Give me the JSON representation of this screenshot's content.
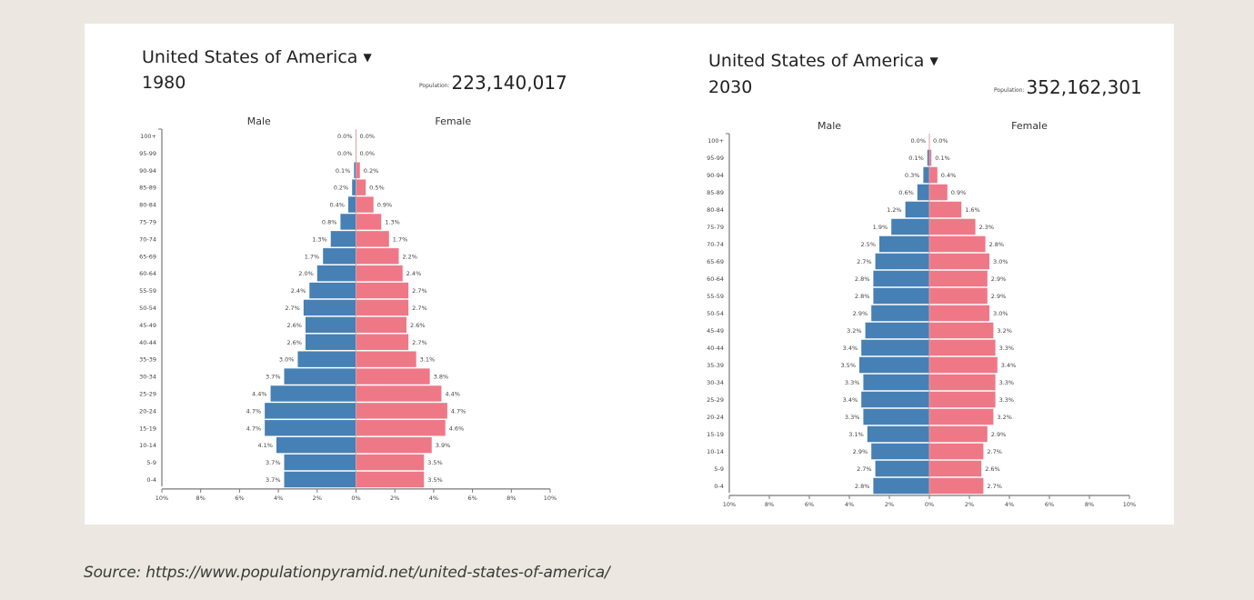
{
  "source_text": "Source: https://www.populationpyramid.net/united-states-of-america/",
  "colors": {
    "male": "#4680b5",
    "female": "#ef7887",
    "axis": "#777777",
    "background": "#ece7e1",
    "card": "#ffffff"
  },
  "pyramids": [
    {
      "country": "United States of America",
      "dropdown_icon": "caret-down-icon",
      "year": "1980",
      "population_label": "Population:",
      "population_value": "223,140,017"
    },
    {
      "country": "United States of America",
      "dropdown_icon": "caret-down-icon",
      "year": "2030",
      "population_label": "Population:",
      "population_value": "352,162,301"
    }
  ],
  "chart_data": [
    {
      "type": "bar",
      "orientation": "horizontal-pyramid",
      "title": "United States of America 1980",
      "categories": [
        "100+",
        "95-99",
        "90-94",
        "85-89",
        "80-84",
        "75-79",
        "70-74",
        "65-69",
        "60-64",
        "55-59",
        "50-54",
        "45-49",
        "40-44",
        "35-39",
        "30-34",
        "25-29",
        "20-24",
        "15-19",
        "10-14",
        "5-9",
        "0-4"
      ],
      "series": [
        {
          "name": "Male",
          "values": [
            0.0,
            0.0,
            0.1,
            0.2,
            0.4,
            0.8,
            1.3,
            1.7,
            2.0,
            2.4,
            2.7,
            2.6,
            2.6,
            3.0,
            3.7,
            4.4,
            4.7,
            4.7,
            4.1,
            3.7,
            3.7
          ]
        },
        {
          "name": "Female",
          "values": [
            0.0,
            0.0,
            0.2,
            0.5,
            0.9,
            1.3,
            1.7,
            2.2,
            2.4,
            2.7,
            2.7,
            2.6,
            2.7,
            3.1,
            3.8,
            4.4,
            4.7,
            4.6,
            3.9,
            3.5,
            3.5
          ]
        }
      ],
      "xlim": [
        -10,
        10
      ],
      "xticks": [
        "10%",
        "8%",
        "6%",
        "4%",
        "2%",
        "0%",
        "2%",
        "4%",
        "6%",
        "8%",
        "10%"
      ],
      "xlabel": "",
      "ylabel": "",
      "legend": {
        "left": "Male",
        "right": "Female",
        "placement": "top"
      },
      "value_unit": "%"
    },
    {
      "type": "bar",
      "orientation": "horizontal-pyramid",
      "title": "United States of America 2030",
      "categories": [
        "100+",
        "95-99",
        "90-94",
        "85-89",
        "80-84",
        "75-79",
        "70-74",
        "65-69",
        "60-64",
        "55-59",
        "50-54",
        "45-49",
        "40-44",
        "35-39",
        "30-34",
        "25-29",
        "20-24",
        "15-19",
        "10-14",
        "5-9",
        "0-4"
      ],
      "series": [
        {
          "name": "Male",
          "values": [
            0.0,
            0.1,
            0.3,
            0.6,
            1.2,
            1.9,
            2.5,
            2.7,
            2.8,
            2.8,
            2.9,
            3.2,
            3.4,
            3.5,
            3.3,
            3.4,
            3.3,
            3.1,
            2.9,
            2.7,
            2.8
          ]
        },
        {
          "name": "Female",
          "values": [
            0.0,
            0.1,
            0.4,
            0.9,
            1.6,
            2.3,
            2.8,
            3.0,
            2.9,
            2.9,
            3.0,
            3.2,
            3.3,
            3.4,
            3.3,
            3.3,
            3.2,
            2.9,
            2.7,
            2.6,
            2.7
          ]
        }
      ],
      "xlim": [
        -10,
        10
      ],
      "xticks": [
        "10%",
        "8%",
        "6%",
        "4%",
        "2%",
        "0%",
        "2%",
        "4%",
        "6%",
        "8%",
        "10%"
      ],
      "xlabel": "",
      "ylabel": "",
      "legend": {
        "left": "Male",
        "right": "Female",
        "placement": "top"
      },
      "value_unit": "%"
    }
  ]
}
